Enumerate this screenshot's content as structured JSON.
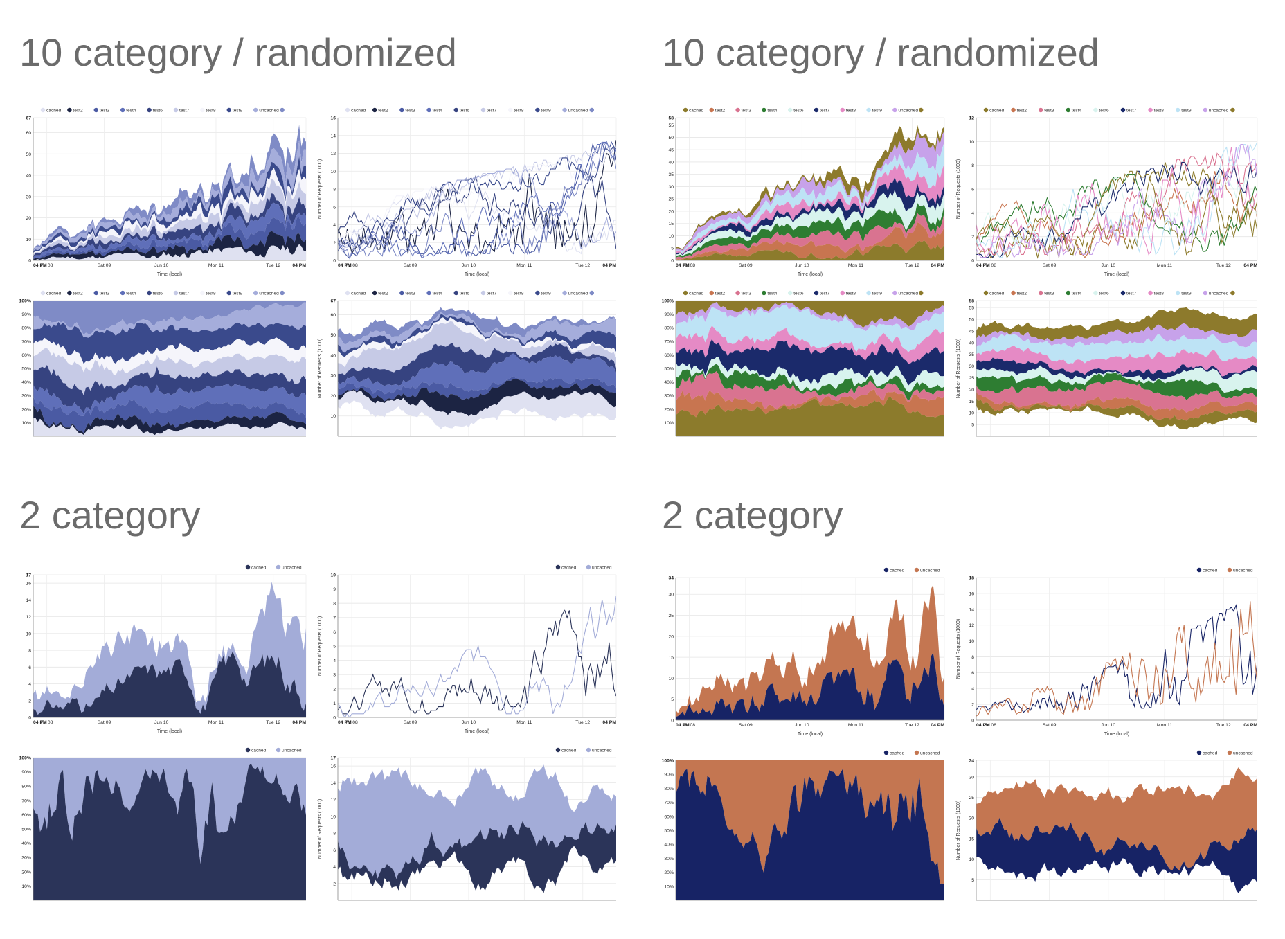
{
  "sections": [
    {
      "title": "10 category / randomized"
    },
    {
      "title": "10 category / randomized"
    },
    {
      "title": "2 category"
    },
    {
      "title": "2 category"
    }
  ],
  "palettes": {
    "blue10": [
      "#dfe1f1",
      "#1c2443",
      "#4a5aa3",
      "#5f6fb9",
      "#364380",
      "#c6cae6",
      "#f5f5fb",
      "#3a4a8c",
      "#a5addb",
      "#7f8bc6"
    ],
    "multi10": [
      "#8c7b2c",
      "#c87550",
      "#d97390",
      "#2e7d32",
      "#d8f3ee",
      "#1b2a6b",
      "#e58ac5",
      "#bde3f5",
      "#c7a2ea",
      "#8d7a2c"
    ],
    "blue2": [
      "#2b3459",
      "#a3acd8"
    ],
    "warm2": [
      "#172365",
      "#c47651"
    ]
  },
  "chart_data": [
    {
      "id": "c1",
      "type": "area",
      "mode": "stacked",
      "palette": "blue10",
      "legend": [
        "cached",
        "test2",
        "test3",
        "test4",
        "test6",
        "test7",
        "test8",
        "test9",
        "uncached",
        ""
      ],
      "ylim": [
        0,
        67
      ],
      "yticks": [
        0,
        10,
        20,
        30,
        40,
        50,
        60,
        67
      ],
      "x": [
        "04 PM",
        "Fri 08",
        "Sat 09",
        "Jun 10",
        "Mon 11",
        "Tue 12",
        "04 PM"
      ],
      "xlabel": "Time (local)",
      "ylabel": "",
      "seed": 11,
      "base": 0.1,
      "growth": 6.4,
      "vol": 0.7
    },
    {
      "id": "c2",
      "type": "line",
      "mode": "line",
      "palette": "blue10",
      "legend": [
        "cached",
        "test2",
        "test3",
        "test4",
        "test6",
        "test7",
        "test8",
        "test9",
        "uncached",
        ""
      ],
      "ylim": [
        0,
        16
      ],
      "yticks": [
        0,
        2,
        4,
        6,
        8,
        10,
        12,
        14,
        16
      ],
      "x": [
        "04 PM",
        "Fri 08",
        "Sat 09",
        "Jun 10",
        "Mon 11",
        "Tue 12",
        "04 PM"
      ],
      "xlabel": "Time (local)",
      "ylabel": "Number of Requests (1000)",
      "seed": 12,
      "base": 0.5,
      "growth": 0.9,
      "vol": 1.0
    },
    {
      "id": "c3",
      "type": "area",
      "mode": "expand",
      "palette": "blue10",
      "legend": [
        "cached",
        "test2",
        "test3",
        "test4",
        "test6",
        "test7",
        "test8",
        "test9",
        "uncached",
        ""
      ],
      "ylim": [
        0,
        100
      ],
      "yticks": [
        10,
        20,
        30,
        40,
        50,
        60,
        70,
        80,
        90,
        100
      ],
      "x": [],
      "xlabel": "",
      "ylabel": "",
      "seed": 13,
      "base": 0.5,
      "growth": 1.0,
      "vol": 0.9
    },
    {
      "id": "c4",
      "type": "area",
      "mode": "stream",
      "palette": "blue10",
      "legend": [
        "cached",
        "test2",
        "test3",
        "test4",
        "test6",
        "test7",
        "test8",
        "test9",
        "uncached",
        ""
      ],
      "ylim": [
        0,
        67
      ],
      "yticks": [
        10,
        20,
        30,
        40,
        50,
        60,
        67
      ],
      "x": [],
      "xlabel": "",
      "ylabel": "Number of Requests (1000)",
      "seed": 14,
      "base": 0.5,
      "growth": 1.0,
      "vol": 0.9
    },
    {
      "id": "c5",
      "type": "area",
      "mode": "stacked",
      "palette": "multi10",
      "legend": [
        "cached",
        "test2",
        "test3",
        "test4",
        "test6",
        "test7",
        "test8",
        "test9",
        "uncached",
        ""
      ],
      "ylim": [
        0,
        58
      ],
      "yticks": [
        0,
        5,
        10,
        15,
        20,
        25,
        30,
        35,
        40,
        45,
        50,
        55,
        58
      ],
      "x": [
        "04 PM",
        "Fri 08",
        "Sat 09",
        "Jun 10",
        "Mon 11",
        "Tue 12",
        "04 PM"
      ],
      "xlabel": "Time (local)",
      "ylabel": "",
      "seed": 21,
      "base": 0.2,
      "growth": 4.8,
      "vol": 0.7
    },
    {
      "id": "c6",
      "type": "line",
      "mode": "line",
      "palette": "multi10",
      "legend": [
        "cached",
        "test2",
        "test3",
        "test4",
        "test6",
        "test7",
        "test8",
        "test9",
        "uncached",
        ""
      ],
      "ylim": [
        0,
        12
      ],
      "yticks": [
        0,
        2,
        4,
        6,
        8,
        10,
        12
      ],
      "x": [
        "04 PM",
        "Fri 08",
        "Sat 09",
        "Jun 10",
        "Mon 11",
        "Tue 12",
        "04 PM"
      ],
      "xlabel": "Time (local)",
      "ylabel": "Number of Requests (1000)",
      "seed": 22,
      "base": 0.4,
      "growth": 0.8,
      "vol": 1.0
    },
    {
      "id": "c7",
      "type": "area",
      "mode": "expand",
      "palette": "multi10",
      "legend": [
        "cached",
        "test2",
        "test3",
        "test4",
        "test6",
        "test7",
        "test8",
        "test9",
        "uncached",
        ""
      ],
      "ylim": [
        0,
        100
      ],
      "yticks": [
        10,
        20,
        30,
        40,
        50,
        60,
        70,
        80,
        90,
        100
      ],
      "x": [],
      "xlabel": "",
      "ylabel": "",
      "seed": 23,
      "base": 0.5,
      "growth": 1.0,
      "vol": 0.9
    },
    {
      "id": "c8",
      "type": "area",
      "mode": "stream",
      "palette": "multi10",
      "legend": [
        "cached",
        "test2",
        "test3",
        "test4",
        "test6",
        "test7",
        "test8",
        "test9",
        "uncached",
        ""
      ],
      "ylim": [
        0,
        58
      ],
      "yticks": [
        5,
        10,
        15,
        20,
        25,
        30,
        35,
        40,
        45,
        50,
        55,
        58
      ],
      "x": [],
      "xlabel": "",
      "ylabel": "Number of Requests (1000)",
      "seed": 24,
      "base": 0.5,
      "growth": 1.0,
      "vol": 0.9
    },
    {
      "id": "c9",
      "type": "area",
      "mode": "stacked",
      "palette": "blue2",
      "legend": [
        "cached",
        "uncached"
      ],
      "ylim": [
        0,
        17
      ],
      "yticks": [
        0,
        2,
        4,
        6,
        8,
        10,
        12,
        14,
        16,
        17
      ],
      "x": [
        "04 PM",
        "Fri 08",
        "Sat 09",
        "Jun 10",
        "Mon 11",
        "Tue 12",
        "04 PM"
      ],
      "xlabel": "Time (local)",
      "ylabel": "",
      "seed": 31,
      "base": 0.3,
      "growth": 2.4,
      "vol": 1.0
    },
    {
      "id": "c10",
      "type": "line",
      "mode": "line",
      "palette": "blue2",
      "legend": [
        "cached",
        "uncached"
      ],
      "ylim": [
        0,
        10
      ],
      "yticks": [
        0,
        1,
        2,
        3,
        4,
        5,
        6,
        7,
        8,
        9,
        10
      ],
      "x": [
        "04 PM",
        "Fri 08",
        "Sat 09",
        "Jun 10",
        "Mon 11",
        "Tue 12",
        "04 PM"
      ],
      "xlabel": "Time (local)",
      "ylabel": "Number of Requests (1000)",
      "seed": 32,
      "base": 0.35,
      "growth": 1.6,
      "vol": 1.0
    },
    {
      "id": "c11",
      "type": "area",
      "mode": "expand",
      "palette": "blue2",
      "legend": [
        "cached",
        "uncached"
      ],
      "ylim": [
        0,
        100
      ],
      "yticks": [
        10,
        20,
        30,
        40,
        50,
        60,
        70,
        80,
        90,
        100
      ],
      "x": [],
      "xlabel": "",
      "ylabel": "",
      "seed": 33,
      "base": 0.5,
      "growth": 1.0,
      "vol": 1.0
    },
    {
      "id": "c12",
      "type": "area",
      "mode": "stream",
      "palette": "blue2",
      "legend": [
        "cached",
        "uncached"
      ],
      "ylim": [
        0,
        17
      ],
      "yticks": [
        2,
        4,
        6,
        8,
        10,
        12,
        14,
        16,
        17
      ],
      "x": [],
      "xlabel": "",
      "ylabel": "Number of Requests (1000)",
      "seed": 34,
      "base": 0.5,
      "growth": 1.0,
      "vol": 1.0
    },
    {
      "id": "c13",
      "type": "area",
      "mode": "stacked",
      "palette": "warm2",
      "legend": [
        "cached",
        "uncached"
      ],
      "ylim": [
        0,
        34
      ],
      "yticks": [
        0,
        5,
        10,
        15,
        20,
        25,
        30,
        34
      ],
      "x": [
        "04 PM",
        "Fri 08",
        "Sat 09",
        "Jun 10",
        "Mon 11",
        "Tue 12",
        "04 PM"
      ],
      "xlabel": "Time (local)",
      "ylabel": "",
      "seed": 41,
      "base": 0.1,
      "growth": 4.0,
      "vol": 0.7
    },
    {
      "id": "c14",
      "type": "line",
      "mode": "line",
      "palette": "warm2",
      "legend": [
        "cached",
        "uncached"
      ],
      "ylim": [
        0,
        18
      ],
      "yticks": [
        0,
        2,
        4,
        6,
        8,
        10,
        12,
        14,
        16,
        18
      ],
      "x": [
        "04 PM",
        "Fri 08",
        "Sat 09",
        "Jun 10",
        "Mon 11",
        "Tue 12",
        "04 PM"
      ],
      "xlabel": "Time (local)",
      "ylabel": "Number of Requests (1000)",
      "seed": 42,
      "base": 0.1,
      "growth": 4.0,
      "vol": 0.7
    },
    {
      "id": "c15",
      "type": "area",
      "mode": "expand",
      "palette": "warm2",
      "legend": [
        "cached",
        "uncached"
      ],
      "ylim": [
        0,
        100
      ],
      "yticks": [
        10,
        20,
        30,
        40,
        50,
        60,
        70,
        80,
        90,
        100
      ],
      "x": [],
      "xlabel": "",
      "ylabel": "",
      "seed": 43,
      "base": 0.5,
      "growth": 1.0,
      "vol": 1.0
    },
    {
      "id": "c16",
      "type": "area",
      "mode": "stream",
      "palette": "warm2",
      "legend": [
        "cached",
        "uncached"
      ],
      "ylim": [
        0,
        34
      ],
      "yticks": [
        5,
        10,
        15,
        20,
        25,
        30,
        34
      ],
      "x": [],
      "xlabel": "",
      "ylabel": "Number of Requests (1000)",
      "seed": 44,
      "base": 0.5,
      "growth": 1.0,
      "vol": 1.0
    }
  ]
}
